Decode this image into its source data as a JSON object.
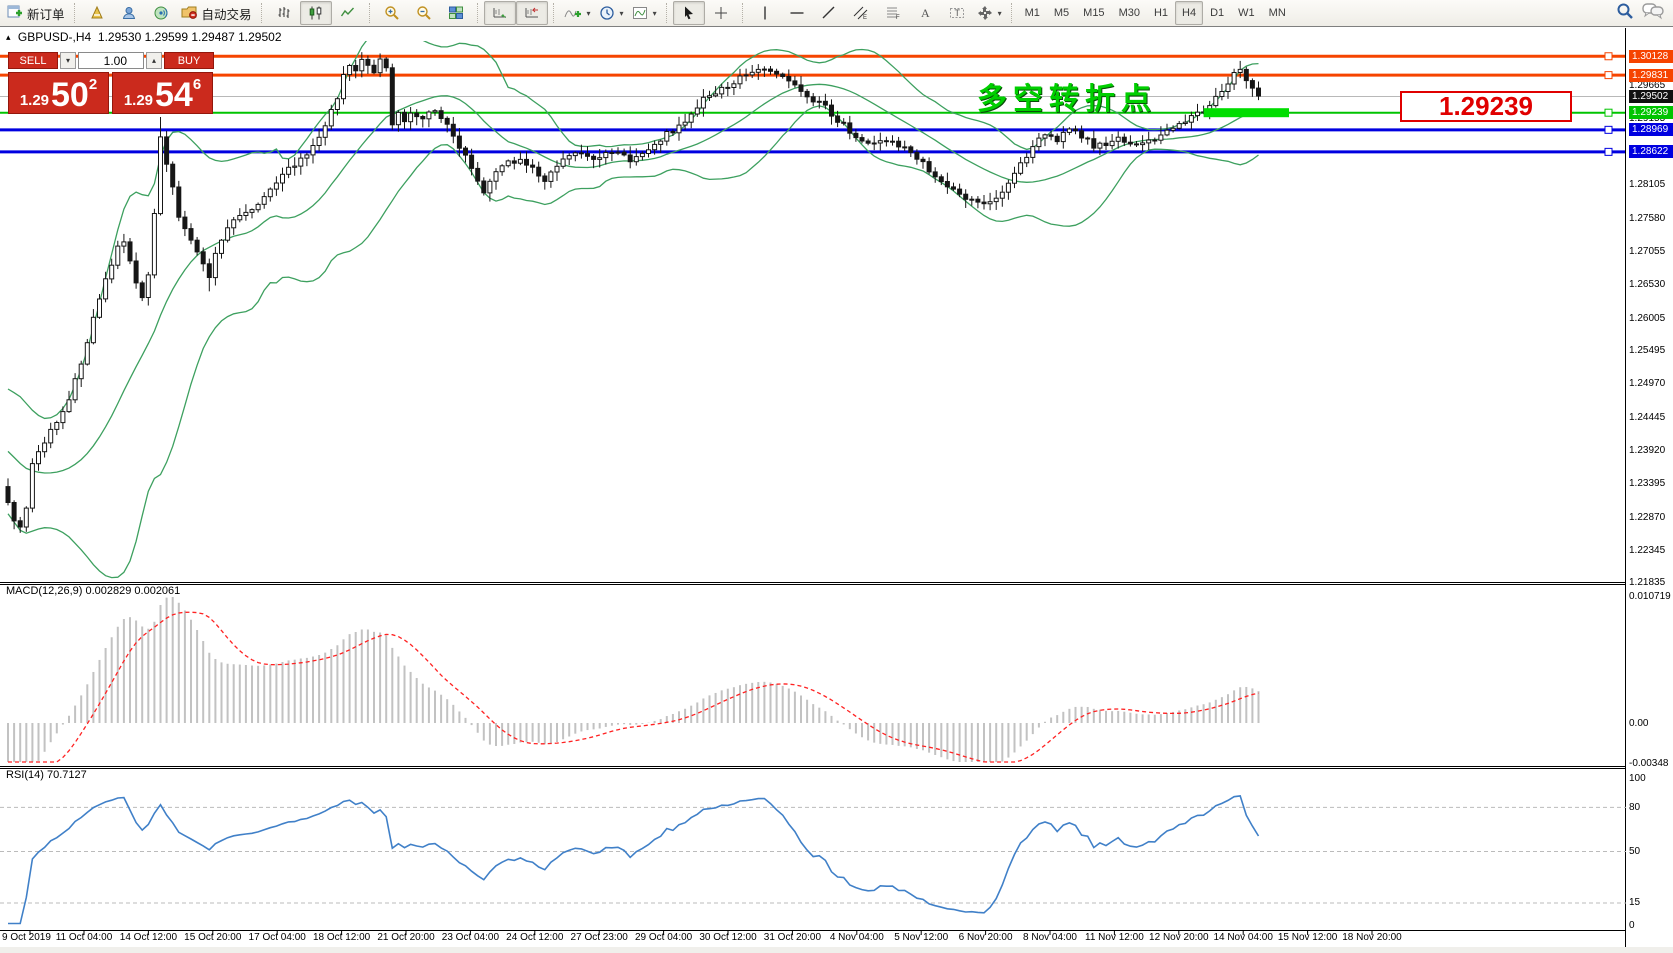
{
  "toolbar": {
    "new_order": "新订单",
    "autotrade": "自动交易",
    "timeframes": [
      "M1",
      "M5",
      "M15",
      "M30",
      "H1",
      "H4",
      "D1",
      "W1",
      "MN"
    ],
    "active_timeframe": "H4"
  },
  "header": {
    "collapse_icon": "▴",
    "symbol": "GBPUSD-,H4",
    "open": "1.29530",
    "high": "1.29599",
    "low": "1.29487",
    "close": "1.29502"
  },
  "trade_panel": {
    "sell": "SELL",
    "buy": "BUY",
    "volume": "1.00",
    "spinner_down": "▾",
    "spinner_up": "▴",
    "sell_price": {
      "small": "1.29",
      "big": "50",
      "sup": "2"
    },
    "buy_price": {
      "small": "1.29",
      "big": "54",
      "sup": "6"
    }
  },
  "annotations": {
    "turning_point": "多空转折点",
    "price_flag": "1.29239"
  },
  "indicators": {
    "macd_label": "MACD(12,26,9) 0.002829 0.002061",
    "macd_axis": [
      {
        "t": "0.010719",
        "v": 0.010719
      },
      {
        "t": "0.00",
        "v": 0
      },
      {
        "t": "-0.00348",
        "v": -0.00348
      }
    ],
    "rsi_label": "RSI(14) 70.7127",
    "rsi_axis": [
      {
        "t": "100",
        "v": 100
      },
      {
        "t": "80",
        "v": 80
      },
      {
        "t": "50",
        "v": 50
      },
      {
        "t": "15",
        "v": 15
      },
      {
        "t": "0",
        "v": 0
      }
    ],
    "rsi_levels": [
      80,
      50,
      15
    ]
  },
  "price_axis": {
    "ticks": [
      "1.29665",
      "1.29155",
      "1.28105",
      "1.27580",
      "1.27055",
      "1.26530",
      "1.26005",
      "1.25495",
      "1.24970",
      "1.24445",
      "1.23920",
      "1.23395",
      "1.22870",
      "1.22345",
      "1.21835"
    ],
    "current": {
      "text": "1.29502",
      "value": 1.29502,
      "bg": "#101010"
    },
    "lines": [
      {
        "text": "1.30128",
        "value": 1.30128,
        "color": "#f64400",
        "width": 3
      },
      {
        "text": "1.29831",
        "value": 1.29831,
        "color": "#f64400",
        "width": 3
      },
      {
        "text": "1.29239",
        "value": 1.29239,
        "color": "#00c400",
        "width": 2
      },
      {
        "text": "1.28969",
        "value": 1.28969,
        "color": "#0000e0",
        "width": 3
      },
      {
        "text": "1.28622",
        "value": 1.28622,
        "color": "#0000e0",
        "width": 3
      }
    ]
  },
  "time_axis": [
    "9 Oct 2019",
    "11 Oct 04:00",
    "14 Oct 12:00",
    "15 Oct 20:00",
    "17 Oct 04:00",
    "18 Oct 12:00",
    "21 Oct 20:00",
    "23 Oct 04:00",
    "24 Oct 12:00",
    "27 Oct 23:00",
    "29 Oct 04:00",
    "30 Oct 12:00",
    "31 Oct 20:00",
    "4 Nov 04:00",
    "5 Nov 12:00",
    "6 Nov 20:00",
    "8 Nov 04:00",
    "11 Nov 12:00",
    "12 Nov 20:00",
    "14 Nov 04:00",
    "15 Nov 12:00",
    "18 Nov 20:00"
  ],
  "chart_data": {
    "type": "candlestick-with-indicators",
    "symbol": "GBPUSD",
    "timeframe": "H4",
    "bars": 206,
    "price_range_visible": [
      1.21835,
      1.30128
    ],
    "last_price": 1.29502,
    "close_keyframes": [
      [
        0,
        1.231
      ],
      [
        1,
        1.2285
      ],
      [
        2,
        1.2268
      ],
      [
        3,
        1.23
      ],
      [
        4,
        1.2372
      ],
      [
        6,
        1.2405
      ],
      [
        8,
        1.244
      ],
      [
        10,
        1.2472
      ],
      [
        12,
        1.253
      ],
      [
        14,
        1.26
      ],
      [
        16,
        1.266
      ],
      [
        18,
        1.2712
      ],
      [
        19,
        1.2722
      ],
      [
        20,
        1.2692
      ],
      [
        21,
        1.2652
      ],
      [
        22,
        1.2632
      ],
      [
        23,
        1.2666
      ],
      [
        24,
        1.2762
      ],
      [
        25,
        1.2885
      ],
      [
        26,
        1.2845
      ],
      [
        27,
        1.2805
      ],
      [
        28,
        1.2762
      ],
      [
        29,
        1.2742
      ],
      [
        30,
        1.2722
      ],
      [
        31,
        1.2702
      ],
      [
        32,
        1.2682
      ],
      [
        33,
        1.2662
      ],
      [
        34,
        1.2702
      ],
      [
        35,
        1.2722
      ],
      [
        36,
        1.2742
      ],
      [
        38,
        1.2762
      ],
      [
        40,
        1.2775
      ],
      [
        42,
        1.279
      ],
      [
        44,
        1.281
      ],
      [
        46,
        1.2835
      ],
      [
        48,
        1.285
      ],
      [
        50,
        1.287
      ],
      [
        52,
        1.29
      ],
      [
        54,
        1.295
      ],
      [
        55,
        1.2985
      ],
      [
        56,
        1.3
      ],
      [
        57,
        1.299
      ],
      [
        58,
        1.3005
      ],
      [
        60,
        1.2985
      ],
      [
        61,
        1.3008
      ],
      [
        62,
        1.2995
      ],
      [
        63,
        1.2905
      ],
      [
        64,
        1.292
      ],
      [
        65,
        1.291
      ],
      [
        66,
        1.2925
      ],
      [
        68,
        1.2915
      ],
      [
        70,
        1.293
      ],
      [
        72,
        1.2905
      ],
      [
        74,
        1.287
      ],
      [
        76,
        1.284
      ],
      [
        77,
        1.2815
      ],
      [
        78,
        1.28
      ],
      [
        80,
        1.283
      ],
      [
        82,
        1.2845
      ],
      [
        84,
        1.285
      ],
      [
        86,
        1.2835
      ],
      [
        88,
        1.282
      ],
      [
        90,
        1.284
      ],
      [
        92,
        1.2855
      ],
      [
        94,
        1.286
      ],
      [
        96,
        1.285
      ],
      [
        98,
        1.286
      ],
      [
        100,
        1.2865
      ],
      [
        102,
        1.285
      ],
      [
        104,
        1.286
      ],
      [
        106,
        1.2875
      ],
      [
        108,
        1.289
      ],
      [
        110,
        1.29
      ],
      [
        112,
        1.2925
      ],
      [
        114,
        1.2945
      ],
      [
        116,
        1.2955
      ],
      [
        118,
        1.2965
      ],
      [
        120,
        1.2978
      ],
      [
        122,
        1.2992
      ],
      [
        124,
        1.2996
      ],
      [
        126,
        1.2985
      ],
      [
        128,
        1.2972
      ],
      [
        130,
        1.2958
      ],
      [
        132,
        1.2945
      ],
      [
        134,
        1.2932
      ],
      [
        136,
        1.2912
      ],
      [
        138,
        1.2895
      ],
      [
        140,
        1.2882
      ],
      [
        142,
        1.2878
      ],
      [
        144,
        1.2882
      ],
      [
        146,
        1.2872
      ],
      [
        148,
        1.2862
      ],
      [
        150,
        1.2845
      ],
      [
        152,
        1.2825
      ],
      [
        154,
        1.2808
      ],
      [
        156,
        1.2792
      ],
      [
        158,
        1.2786
      ],
      [
        160,
        1.2781
      ],
      [
        162,
        1.2792
      ],
      [
        164,
        1.2812
      ],
      [
        166,
        1.2842
      ],
      [
        168,
        1.2872
      ],
      [
        170,
        1.2888
      ],
      [
        172,
        1.2882
      ],
      [
        174,
        1.2896
      ],
      [
        176,
        1.2886
      ],
      [
        178,
        1.2872
      ],
      [
        180,
        1.2876
      ],
      [
        182,
        1.2882
      ],
      [
        184,
        1.2872
      ],
      [
        186,
        1.2876
      ],
      [
        188,
        1.2882
      ],
      [
        190,
        1.2896
      ],
      [
        192,
        1.2906
      ],
      [
        194,
        1.2916
      ],
      [
        196,
        1.2926
      ],
      [
        198,
        1.2946
      ],
      [
        200,
        1.2972
      ],
      [
        201,
        1.2986
      ],
      [
        202,
        1.2996
      ],
      [
        203,
        1.2976
      ],
      [
        204,
        1.2962
      ],
      [
        205,
        1.29502
      ]
    ],
    "bollinger": {
      "period": 20,
      "deviation": 2
    },
    "macd": {
      "fast": 12,
      "slow": 26,
      "signal": 9,
      "current": [
        0.002829,
        0.002061
      ]
    },
    "rsi": {
      "period": 14,
      "current": 70.7127
    },
    "highlight_segment": {
      "price": 1.29239,
      "from_bar": 196,
      "to_bar": 210
    }
  },
  "colors": {
    "candle_up": "#ffffff",
    "candle_down": "#161616",
    "candle_border": "#161616",
    "bollinger": "#3da05f",
    "macd_hist": "#c2c2c2",
    "macd_signal": "#ff2222",
    "rsi_line": "#4080c8",
    "accent_red": "#e00000",
    "accent_green": "#00cf00",
    "level_orange": "#f64400",
    "level_blue": "#0000e0",
    "level_green": "#00c400"
  }
}
